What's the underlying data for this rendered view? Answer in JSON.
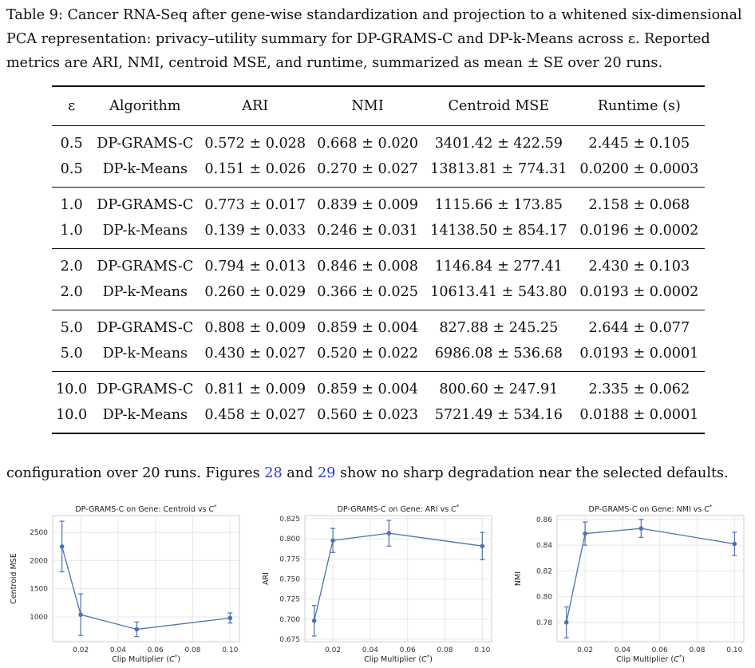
{
  "caption": "Table 9: Cancer RNA-Seq after gene-wise standardization and projection to a whitened six-dimensional PCA representation: privacy–utility summary for DP-GRAMS-C and DP-k-Means across ε. Reported metrics are ARI, NMI, centroid MSE, and runtime, summarized as mean ± SE over 20 runs.",
  "table": {
    "headers": [
      "ε",
      "Algorithm",
      "ARI",
      "NMI",
      "Centroid MSE",
      "Runtime (s)"
    ],
    "groups": [
      [
        [
          "0.5",
          "DP-GRAMS-C",
          "0.572 ± 0.028",
          "0.668 ± 0.020",
          "3401.42 ± 422.59",
          "2.445 ± 0.105"
        ],
        [
          "0.5",
          "DP-k-Means",
          "0.151 ± 0.026",
          "0.270 ± 0.027",
          "13813.81 ± 774.31",
          "0.0200 ± 0.0003"
        ]
      ],
      [
        [
          "1.0",
          "DP-GRAMS-C",
          "0.773 ± 0.017",
          "0.839 ± 0.009",
          "1115.66 ± 173.85",
          "2.158 ± 0.068"
        ],
        [
          "1.0",
          "DP-k-Means",
          "0.139 ± 0.033",
          "0.246 ± 0.031",
          "14138.50 ± 854.17",
          "0.0196 ± 0.0002"
        ]
      ],
      [
        [
          "2.0",
          "DP-GRAMS-C",
          "0.794 ± 0.013",
          "0.846 ± 0.008",
          "1146.84 ± 277.41",
          "2.430 ± 0.103"
        ],
        [
          "2.0",
          "DP-k-Means",
          "0.260 ± 0.029",
          "0.366 ± 0.025",
          "10613.41 ± 543.80",
          "0.0193 ± 0.0002"
        ]
      ],
      [
        [
          "5.0",
          "DP-GRAMS-C",
          "0.808 ± 0.009",
          "0.859 ± 0.004",
          "827.88 ± 245.25",
          "2.644 ± 0.077"
        ],
        [
          "5.0",
          "DP-k-Means",
          "0.430 ± 0.027",
          "0.520 ± 0.022",
          "6986.08 ± 536.68",
          "0.0193 ± 0.0001"
        ]
      ],
      [
        [
          "10.0",
          "DP-GRAMS-C",
          "0.811 ± 0.009",
          "0.859 ± 0.004",
          "800.60 ± 247.91",
          "2.335 ± 0.062"
        ],
        [
          "10.0",
          "DP-k-Means",
          "0.458 ± 0.027",
          "0.560 ± 0.023",
          "5721.49 ± 534.16",
          "0.0188 ± 0.0001"
        ]
      ]
    ]
  },
  "paragraph": {
    "pre": "configuration over 20 runs. Figures ",
    "ref1": "28",
    "mid": " and ",
    "ref2": "29",
    "post": " show no sharp degradation near the selected defaults."
  },
  "chart_data": [
    {
      "type": "line",
      "title": "DP-GRAMS-C on Gene: Centroid vs C*",
      "xlabel": "Clip Multiplier (C*)",
      "ylabel": "Centroid MSE",
      "x": [
        0.01,
        0.02,
        0.05,
        0.1
      ],
      "y": [
        2250,
        1040,
        780,
        980
      ],
      "err": [
        450,
        370,
        130,
        90
      ],
      "xlim": [
        0.005,
        0.105
      ],
      "ylim": [
        560,
        2800
      ],
      "xticks": [
        "0.02",
        "0.04",
        "0.06",
        "0.08",
        "0.10"
      ],
      "yticks": [
        "1000",
        "1500",
        "2000",
        "2500"
      ],
      "grid": true
    },
    {
      "type": "line",
      "title": "DP-GRAMS-C on Gene: ARI vs C*",
      "xlabel": "Clip Multiplier (C*)",
      "ylabel": "ARI",
      "x": [
        0.01,
        0.02,
        0.05,
        0.1
      ],
      "y": [
        0.698,
        0.798,
        0.807,
        0.791
      ],
      "err": [
        0.019,
        0.015,
        0.016,
        0.017
      ],
      "xlim": [
        0.005,
        0.105
      ],
      "ylim": [
        0.672,
        0.829
      ],
      "xticks": [
        "0.02",
        "0.04",
        "0.06",
        "0.08",
        "0.10"
      ],
      "yticks": [
        "0.675",
        "0.700",
        "0.725",
        "0.750",
        "0.775",
        "0.800",
        "0.825"
      ],
      "grid": true
    },
    {
      "type": "line",
      "title": "DP-GRAMS-C on Gene: NMI vs C*",
      "xlabel": "Clip Multiplier (C*)",
      "ylabel": "NMI",
      "x": [
        0.01,
        0.02,
        0.05,
        0.1
      ],
      "y": [
        0.78,
        0.849,
        0.853,
        0.841
      ],
      "err": [
        0.012,
        0.009,
        0.007,
        0.009
      ],
      "xlim": [
        0.005,
        0.105
      ],
      "ylim": [
        0.765,
        0.863
      ],
      "xticks": [
        "0.02",
        "0.04",
        "0.06",
        "0.08",
        "0.10"
      ],
      "yticks": [
        "0.78",
        "0.80",
        "0.82",
        "0.84",
        "0.86"
      ],
      "grid": true
    }
  ]
}
